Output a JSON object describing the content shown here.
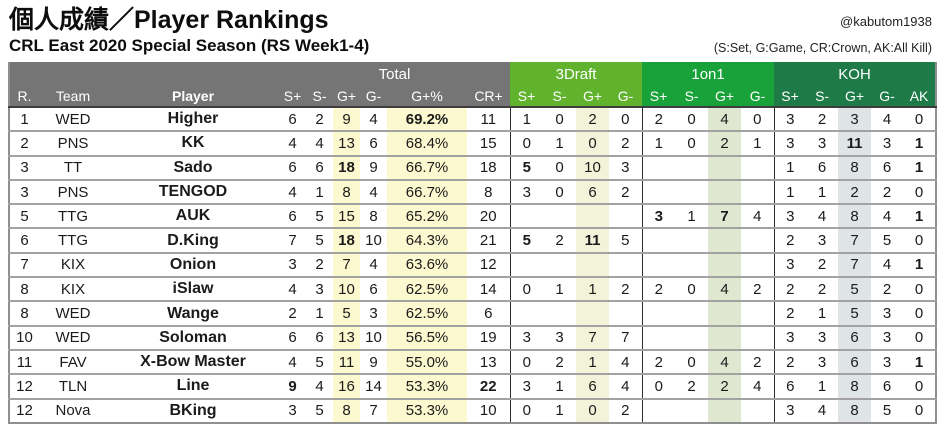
{
  "page": {
    "title": "個人成績／Player Rankings",
    "subtitle": "CRL East 2020 Special Season (RS Week1-4)",
    "credit": "@kabutom1938",
    "legend": "(S:Set, G:Game, CR:Crown, AK:All Kill)"
  },
  "colors": {
    "header_gray": "#757575",
    "group_3draft_green": "#61b32e",
    "group_1on1_green": "#19a23a",
    "group_koh_green": "#1e7b47",
    "stripe_yellow": "#fcf8cf",
    "stripe_olive": "#f2f3d9",
    "stripe_sage": "#dfe7d0",
    "stripe_bluegray": "#dfe4e6"
  },
  "chart_data": {
    "type": "table",
    "title": "個人成績／Player Rankings",
    "subtitle": "CRL East 2020 Special Season (RS Week1-4)",
    "groups": [
      {
        "label": "",
        "span": 3,
        "color": "#757575"
      },
      {
        "label": "Total",
        "span": 6,
        "color": "#757575"
      },
      {
        "label": "3Draft",
        "span": 4,
        "color": "#61b32e"
      },
      {
        "label": "1on1",
        "span": 4,
        "color": "#19a23a"
      },
      {
        "label": "KOH",
        "span": 5,
        "color": "#1e7b47"
      }
    ],
    "columns": [
      "R.",
      "Team",
      "Player",
      "S+",
      "S-",
      "G+",
      "G-",
      "G+%",
      "CR+",
      "S+",
      "S-",
      "G+",
      "G-",
      "S+",
      "S-",
      "G+",
      "G-",
      "S+",
      "S-",
      "G+",
      "G-",
      "AK"
    ],
    "rows": [
      {
        "cells": [
          "1",
          "WED",
          "Higher",
          "6",
          "2",
          "9",
          "4",
          "69.2%",
          "11",
          "1",
          "0",
          "2",
          "0",
          "2",
          "0",
          "4",
          "0",
          "3",
          "2",
          "3",
          "4",
          "0"
        ],
        "bold": [
          7
        ]
      },
      {
        "cells": [
          "2",
          "PNS",
          "KK",
          "4",
          "4",
          "13",
          "6",
          "68.4%",
          "15",
          "0",
          "1",
          "0",
          "2",
          "1",
          "0",
          "2",
          "1",
          "3",
          "3",
          "11",
          "3",
          "1"
        ],
        "bold": [
          19,
          21
        ]
      },
      {
        "cells": [
          "3",
          "TT",
          "Sado",
          "6",
          "6",
          "18",
          "9",
          "66.7%",
          "18",
          "5",
          "0",
          "10",
          "3",
          "",
          "",
          "",
          "",
          "1",
          "6",
          "8",
          "6",
          "1"
        ],
        "bold": [
          5,
          9,
          21
        ]
      },
      {
        "cells": [
          "3",
          "PNS",
          "TENGOD",
          "4",
          "1",
          "8",
          "4",
          "66.7%",
          "8",
          "3",
          "0",
          "6",
          "2",
          "",
          "",
          "",
          "",
          "1",
          "1",
          "2",
          "2",
          "0"
        ],
        "bold": []
      },
      {
        "cells": [
          "5",
          "TTG",
          "AUK",
          "6",
          "5",
          "15",
          "8",
          "65.2%",
          "20",
          "",
          "",
          "",
          "",
          "3",
          "1",
          "7",
          "4",
          "3",
          "4",
          "8",
          "4",
          "1"
        ],
        "bold": [
          13,
          15,
          21
        ]
      },
      {
        "cells": [
          "6",
          "TTG",
          "D.King",
          "7",
          "5",
          "18",
          "10",
          "64.3%",
          "21",
          "5",
          "2",
          "11",
          "5",
          "",
          "",
          "",
          "",
          "2",
          "3",
          "7",
          "5",
          "0"
        ],
        "bold": [
          5,
          9,
          11
        ]
      },
      {
        "cells": [
          "7",
          "KIX",
          "Onion",
          "3",
          "2",
          "7",
          "4",
          "63.6%",
          "12",
          "",
          "",
          "",
          "",
          "",
          "",
          "",
          "",
          "3",
          "2",
          "7",
          "4",
          "1"
        ],
        "bold": [
          21
        ]
      },
      {
        "cells": [
          "8",
          "KIX",
          "iSlaw",
          "4",
          "3",
          "10",
          "6",
          "62.5%",
          "14",
          "0",
          "1",
          "1",
          "2",
          "2",
          "0",
          "4",
          "2",
          "2",
          "2",
          "5",
          "2",
          "0"
        ],
        "bold": []
      },
      {
        "cells": [
          "8",
          "WED",
          "Wange",
          "2",
          "1",
          "5",
          "3",
          "62.5%",
          "6",
          "",
          "",
          "",
          "",
          "",
          "",
          "",
          "",
          "2",
          "1",
          "5",
          "3",
          "0"
        ],
        "bold": []
      },
      {
        "cells": [
          "10",
          "WED",
          "Soloman",
          "6",
          "6",
          "13",
          "10",
          "56.5%",
          "19",
          "3",
          "3",
          "7",
          "7",
          "",
          "",
          "",
          "",
          "3",
          "3",
          "6",
          "3",
          "0"
        ],
        "bold": []
      },
      {
        "cells": [
          "11",
          "FAV",
          "X-Bow Master",
          "4",
          "5",
          "11",
          "9",
          "55.0%",
          "13",
          "0",
          "2",
          "1",
          "4",
          "2",
          "0",
          "4",
          "2",
          "2",
          "3",
          "6",
          "3",
          "1"
        ],
        "bold": [
          21
        ]
      },
      {
        "cells": [
          "12",
          "TLN",
          "Line",
          "9",
          "4",
          "16",
          "14",
          "53.3%",
          "22",
          "3",
          "1",
          "6",
          "4",
          "0",
          "2",
          "2",
          "4",
          "6",
          "1",
          "8",
          "6",
          "0"
        ],
        "bold": [
          3,
          8
        ]
      },
      {
        "cells": [
          "12",
          "Nova",
          "BKing",
          "3",
          "5",
          "8",
          "7",
          "53.3%",
          "10",
          "0",
          "1",
          "0",
          "2",
          "",
          "",
          "",
          "",
          "3",
          "4",
          "8",
          "5",
          "0"
        ],
        "bold": []
      }
    ]
  }
}
